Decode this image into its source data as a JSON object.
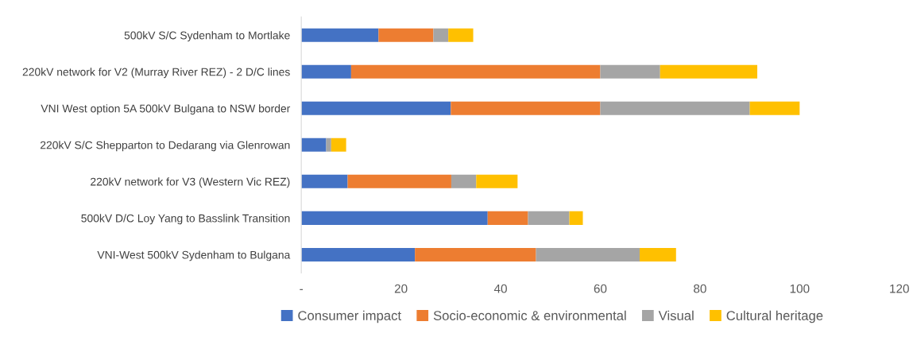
{
  "chart_data": {
    "type": "bar",
    "orientation": "horizontal",
    "stacked": true,
    "categories": [
      "500kV S/C Sydenham to Mortlake",
      "220kV network for V2 (Murray River REZ) - 2 D/C lines",
      "VNI West option 5A 500kV Bulgana to NSW border",
      "220kV S/C Shepparton to Dedarang via Glenrowan",
      "220kV network for V3 (Western Vic REZ)",
      "500kV D/C Loy Yang to Basslink Transition",
      "VNI-West 500kV Sydenham to Bulgana"
    ],
    "series": [
      {
        "name": "Consumer impact",
        "color": "#4472c4",
        "values": [
          15.5,
          10,
          30,
          5,
          9.3,
          37.4,
          22.8
        ]
      },
      {
        "name": "Socio-economic & environmental",
        "color": "#ed7d31",
        "values": [
          11,
          50,
          30,
          0,
          20.8,
          8.1,
          24.3
        ]
      },
      {
        "name": "Visual",
        "color": "#a5a5a5",
        "values": [
          3,
          12,
          30,
          1,
          5,
          8.3,
          20.8
        ]
      },
      {
        "name": "Cultural heritage",
        "color": "#ffc000",
        "values": [
          5,
          19.5,
          10,
          3,
          8.3,
          2.7,
          7.3
        ]
      }
    ],
    "xlim": [
      0,
      120
    ],
    "xticks": [
      {
        "value": 0,
        "label": "-"
      },
      20,
      40,
      60,
      80,
      100,
      120
    ],
    "grid": false,
    "legend": "bottom"
  }
}
